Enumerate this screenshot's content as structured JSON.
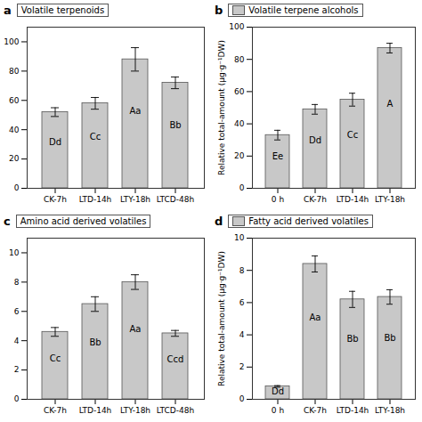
{
  "chart_data": [
    {
      "type": "bar",
      "panel_label": "a",
      "title": "Volatile terpenoids",
      "categories": [
        "CK-7h",
        "LTD-14h",
        "LTY-18h",
        "LTCD-48h"
      ],
      "values": [
        52,
        58,
        88,
        72
      ],
      "errors": [
        3,
        4,
        8,
        4
      ],
      "annotations": [
        "Dd",
        "Cc",
        "Aa",
        "Bb"
      ],
      "color": "#c8c8c8",
      "ylim": [
        0,
        110
      ],
      "yticks": [
        0,
        20,
        40,
        60,
        80,
        100
      ],
      "grid": false
    },
    {
      "type": "bar",
      "panel_label": "b",
      "title": "Volatile terpene alcohols",
      "categories": [
        "0 h",
        "CK-7h",
        "LTD-14h",
        "LTY-18h"
      ],
      "values": [
        33,
        49,
        55,
        87
      ],
      "errors": [
        3,
        3,
        4,
        3
      ],
      "annotations": [
        "Ee",
        "Dd",
        "Cc",
        "A"
      ],
      "ylabel": "Relative total-amount (μg·g⁻¹DW)",
      "color": "#c8c8c8",
      "ylim": [
        0,
        100
      ],
      "yticks": [
        0,
        20,
        40,
        60,
        80,
        100
      ],
      "grid": false,
      "legend": "upper left"
    },
    {
      "type": "bar",
      "panel_label": "c",
      "title": "Amino acid derived volatiles",
      "categories": [
        "CK-7h",
        "LTD-14h",
        "LTY-18h",
        "LTCD-48h"
      ],
      "values": [
        4.6,
        6.5,
        8.0,
        4.5
      ],
      "errors": [
        0.3,
        0.5,
        0.5,
        0.2
      ],
      "annotations": [
        "Cc",
        "Bb",
        "Aa",
        "Ccd"
      ],
      "color": "#c8c8c8",
      "ylim": [
        0,
        11
      ],
      "yticks": [
        0,
        2,
        4,
        6,
        8,
        10
      ],
      "grid": false
    },
    {
      "type": "bar",
      "panel_label": "d",
      "title": "Fatty acid derived volatiles",
      "categories": [
        "0 h",
        "CK-7h",
        "LTD-14h",
        "LTY-18h"
      ],
      "values": [
        0.8,
        8.4,
        6.2,
        6.35
      ],
      "errors": [
        0.05,
        0.5,
        0.5,
        0.45
      ],
      "annotations": [
        "Dd",
        "Aa",
        "Bb",
        "Bb"
      ],
      "ylabel": "Relative total-amount (μg·g⁻¹DW)",
      "color": "#c8c8c8",
      "ylim": [
        0,
        10
      ],
      "yticks": [
        0,
        2,
        4,
        6,
        8,
        10
      ],
      "grid": false,
      "legend": "upper left"
    }
  ]
}
